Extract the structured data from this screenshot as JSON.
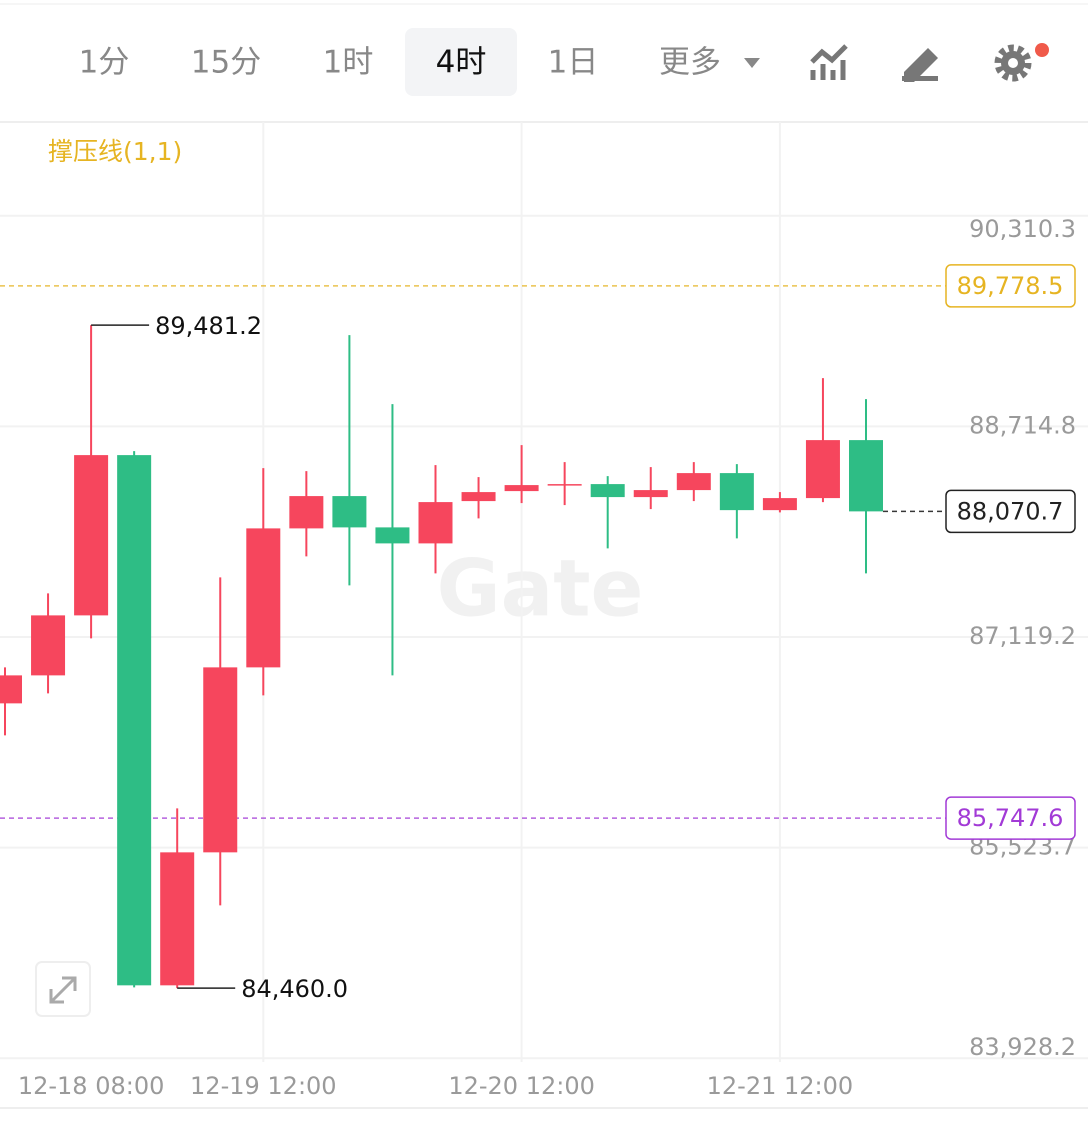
{
  "toolbar": {
    "intervals": [
      "1分",
      "15分",
      "1时",
      "4时",
      "1日"
    ],
    "active": 3,
    "more": "更多"
  },
  "chart_data": {
    "type": "candlestick",
    "indicator": "撑压线(1,1)",
    "watermark": "Gate",
    "up_color": "#f6465d",
    "down_color": "#2ebd85",
    "categories": [
      null,
      null,
      "12-18 08:00",
      null,
      null,
      null,
      "12-19 12:00",
      null,
      null,
      null,
      null,
      null,
      "12-20 12:00",
      null,
      null,
      null,
      null,
      null,
      "12-21 12:00",
      null,
      null
    ],
    "open": [
      86616.5,
      86828.5,
      87282.9,
      88496.9,
      84480.7,
      85488.0,
      86889.1,
      87941.8,
      88186.5,
      87949.4,
      87828.2,
      88148.6,
      88224.3,
      88273.0,
      88277.3,
      88178.9,
      88231.9,
      88360.6,
      88080.1,
      88171.3,
      88610.5
    ],
    "high": [
      86889.1,
      87449.5,
      89481.2,
      88527.2,
      85821.2,
      87570.7,
      88398.5,
      88375.8,
      89405.5,
      88883.2,
      88421.2,
      88330.3,
      88572.6,
      88443.9,
      88337.9,
      88406.1,
      88443.9,
      88428.8,
      88216.8,
      89079.8,
      88921.0
    ],
    "low": [
      86374.1,
      86692.2,
      87108.7,
      84465.6,
      84460.0,
      85086.6,
      86677.0,
      87729.8,
      87510.1,
      86828.5,
      87601.0,
      88017.5,
      88133.4,
      88118.3,
      87790.4,
      88088.0,
      88148.6,
      87866.1,
      88063.0,
      88141.0,
      87601.0
    ],
    "close": [
      86828.5,
      87282.9,
      88496.9,
      84480.7,
      85488.0,
      86889.1,
      87941.8,
      88186.5,
      87949.4,
      87828.2,
      88141.0,
      88216.8,
      88269.8,
      88277.3,
      88178.9,
      88231.9,
      88360.6,
      88080.1,
      88171.3,
      88610.5,
      88070.7
    ],
    "ylim": [
      83900,
      91020
    ],
    "yticks": [
      {
        "value": 90310.3,
        "label": "90,310.3"
      },
      {
        "value": 88714.8,
        "label": "88,714.8"
      },
      {
        "value": 87119.2,
        "label": "87,119.2"
      },
      {
        "value": 85523.7,
        "label": "85,523.7"
      },
      {
        "value": 83928.2,
        "label": "83,928.2"
      }
    ],
    "extremes": [
      {
        "value": 89481.2,
        "label": "89,481.2"
      },
      {
        "value": 84460.0,
        "label": "84,460.0"
      }
    ],
    "levels": [
      {
        "value": 89778.5,
        "label": "89,778.5",
        "color": "#e6b422"
      },
      {
        "value": 85747.6,
        "label": "85,747.6",
        "color": "#a23ad6"
      },
      {
        "value": 88070.7,
        "label": "88,070.7",
        "color": "#222222"
      }
    ],
    "grid": true
  }
}
